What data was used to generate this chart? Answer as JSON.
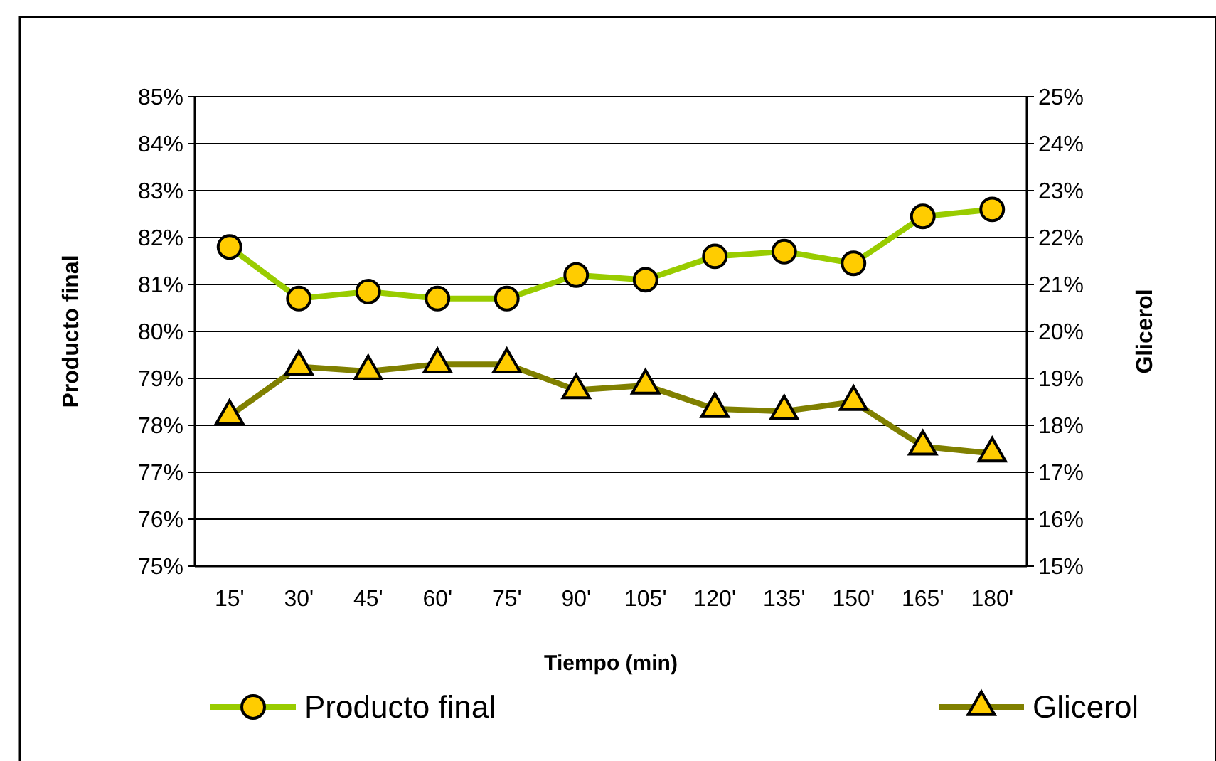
{
  "chart_data": {
    "type": "line",
    "xlabel": "Tiempo (min)",
    "ylabel": "Producto final",
    "y2label": "Glicerol",
    "categories": [
      "15'",
      "30'",
      "45'",
      "60'",
      "75'",
      "90'",
      "105'",
      "120'",
      "135'",
      "150'",
      "165'",
      "180'"
    ],
    "series": [
      {
        "name": "Producto final",
        "color": "#99cc00",
        "marker": "circle",
        "values": [
          81.8,
          80.7,
          80.85,
          80.7,
          80.7,
          81.2,
          81.1,
          81.6,
          81.7,
          81.45,
          82.45,
          82.6
        ]
      },
      {
        "name": "Glicerol",
        "color": "#808000",
        "marker": "triangle",
        "axis": "y2",
        "values": [
          18.2,
          19.25,
          19.15,
          19.3,
          19.3,
          18.75,
          18.85,
          18.35,
          18.3,
          18.5,
          17.55,
          17.4
        ]
      }
    ],
    "ylim": [
      75,
      85
    ],
    "yticks": [
      {
        "value": 75,
        "label": "75%"
      },
      {
        "value": 76,
        "label": "76%"
      },
      {
        "value": 77,
        "label": "77%"
      },
      {
        "value": 78,
        "label": "78%"
      },
      {
        "value": 79,
        "label": "79%"
      },
      {
        "value": 80,
        "label": "80%"
      },
      {
        "value": 81,
        "label": "81%"
      },
      {
        "value": 82,
        "label": "82%"
      },
      {
        "value": 83,
        "label": "83%"
      },
      {
        "value": 84,
        "label": "84%"
      },
      {
        "value": 85,
        "label": "85%"
      }
    ],
    "y2lim": [
      15,
      25
    ],
    "y2ticks": [
      {
        "value": 15,
        "label": "15%"
      },
      {
        "value": 16,
        "label": "16%"
      },
      {
        "value": 17,
        "label": "17%"
      },
      {
        "value": 18,
        "label": "18%"
      },
      {
        "value": 19,
        "label": "19%"
      },
      {
        "value": 20,
        "label": "20%"
      },
      {
        "value": 21,
        "label": "21%"
      },
      {
        "value": 22,
        "label": "22%"
      },
      {
        "value": 23,
        "label": "23%"
      },
      {
        "value": 24,
        "label": "24%"
      },
      {
        "value": 25,
        "label": "25%"
      }
    ],
    "grid": "y",
    "legend": "bottom"
  }
}
